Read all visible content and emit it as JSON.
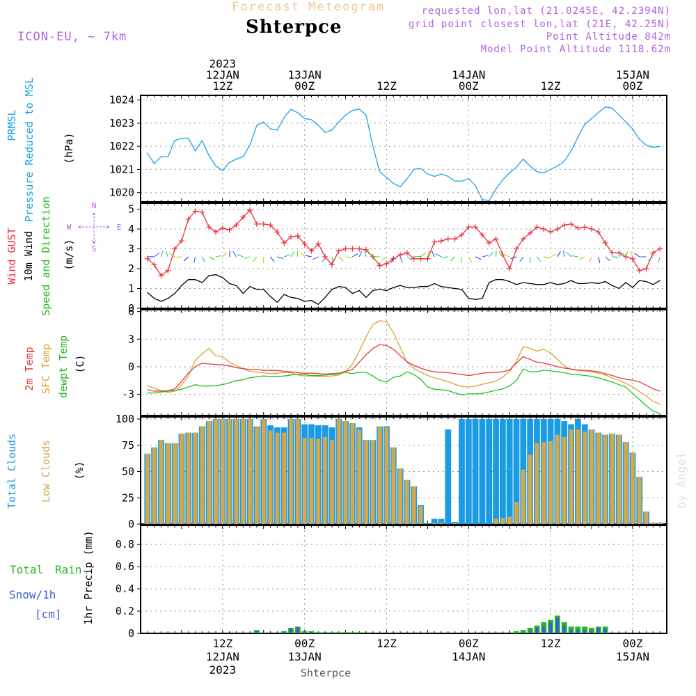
{
  "header": {
    "forecast_title": "Forecast Meteogram",
    "station": "Shterpce",
    "model": "ICON-EU, ~ 7km",
    "requested": "requested lon,lat (21.0245E, 42.2394N)",
    "grid_point": "grid point closest lon,lat (21E, 42.25N)",
    "point_altitude": "Point Altitude 842m",
    "model_altitude": "Model Point Altitude 1118.62m"
  },
  "watermark": "by Angel",
  "footer_station": "Shterpce",
  "top_time_labels": [
    {
      "lines": [
        "2023",
        "12JAN",
        "12Z"
      ],
      "t": 12
    },
    {
      "lines": [
        "13JAN",
        "00Z"
      ],
      "t": 24
    },
    {
      "lines": [
        "12Z"
      ],
      "t": 36
    },
    {
      "lines": [
        "14JAN",
        "00Z"
      ],
      "t": 48
    },
    {
      "lines": [
        "12Z"
      ],
      "t": 60
    },
    {
      "lines": [
        "15JAN",
        "00Z"
      ],
      "t": 72
    }
  ],
  "bottom_time_labels": [
    {
      "lines": [
        "12Z",
        "12JAN",
        "2023"
      ],
      "t": 12
    },
    {
      "lines": [
        "00Z",
        "13JAN"
      ],
      "t": 24
    },
    {
      "lines": [
        "12Z"
      ],
      "t": 36
    },
    {
      "lines": [
        "00Z",
        "14JAN"
      ],
      "t": 48
    },
    {
      "lines": [
        "12Z"
      ],
      "t": 60
    },
    {
      "lines": [
        "00Z",
        "15JAN"
      ],
      "t": 72
    }
  ],
  "labels": {
    "pressure": [
      "PRMSL",
      "Pressure Reduced to MSL",
      "(hPa)"
    ],
    "wind": [
      "Wind GUST",
      "10m Wind",
      "Speed and Direction",
      "(m/s)"
    ],
    "compass": [
      "N",
      "W",
      "E",
      "S"
    ],
    "temp": [
      "2m Temp",
      "SFC Temp",
      "dewpt Temp",
      "(C)"
    ],
    "clouds": [
      "Total Clouds",
      "Low Clouds",
      "(%)"
    ],
    "precip": [
      "Total",
      "Rain",
      "Snow/1h",
      "[cm]",
      "1hr Precip (mm)"
    ]
  },
  "colors": {
    "pressure": "#1ea0e6",
    "gust": "#e8303a",
    "wind": "#000000",
    "t2m": "#e83a3a",
    "sfc": "#e0a030",
    "dew": "#22c022",
    "total_clouds": "#1a9be6",
    "low_clouds": "#d4a84a",
    "rain": "#22b822",
    "snow": "#3b5be0",
    "purple": "#b060e0",
    "title_orange": "#f0c890"
  },
  "chart_data": [
    {
      "type": "line",
      "title": "PRMSL Pressure Reduced to MSL",
      "ylabel": "(hPa)",
      "ylim": [
        1019.6,
        1024.2
      ],
      "yticks": [
        1020,
        1021,
        1022,
        1023,
        1024
      ],
      "x_hours": [
        1,
        2,
        3,
        4,
        5,
        6,
        7,
        8,
        9,
        10,
        11,
        12,
        13,
        14,
        15,
        16,
        17,
        18,
        19,
        20,
        21,
        22,
        23,
        24,
        25,
        26,
        27,
        28,
        29,
        30,
        31,
        32,
        33,
        34,
        35,
        36,
        37,
        38,
        39,
        40,
        41,
        42,
        43,
        44,
        45,
        46,
        47,
        48,
        49,
        50,
        51,
        52,
        53,
        54,
        55,
        56,
        57,
        58,
        59,
        60,
        61,
        62,
        63,
        64,
        65,
        66,
        67,
        68,
        69,
        70,
        71,
        72,
        73,
        74,
        75,
        76
      ],
      "values": [
        1021.7,
        1021.25,
        1021.55,
        1021.55,
        1022.25,
        1022.35,
        1022.35,
        1021.8,
        1022.25,
        1021.6,
        1021.15,
        1020.95,
        1021.3,
        1021.45,
        1021.55,
        1022.05,
        1022.9,
        1023.05,
        1022.75,
        1022.7,
        1023.25,
        1023.6,
        1023.45,
        1023.2,
        1023.15,
        1022.9,
        1022.6,
        1022.7,
        1023.05,
        1023.35,
        1023.55,
        1023.6,
        1023.35,
        1022.0,
        1020.9,
        1020.65,
        1020.4,
        1020.25,
        1020.6,
        1021.0,
        1021.05,
        1020.8,
        1020.7,
        1020.8,
        1020.7,
        1020.5,
        1020.5,
        1020.6,
        1020.3,
        1019.7,
        1019.65,
        1020.15,
        1020.55,
        1020.85,
        1021.1,
        1021.45,
        1021.15,
        1020.9,
        1020.85,
        1021.0,
        1021.15,
        1021.35,
        1021.8,
        1022.4,
        1022.95,
        1023.2,
        1023.45,
        1023.7,
        1023.65,
        1023.35,
        1023.05,
        1022.75,
        1022.3,
        1022.05,
        1021.95,
        1022.0
      ]
    },
    {
      "type": "line",
      "title": "Wind GUST / 10m Wind Speed and Direction",
      "ylabel": "(m/s)",
      "ylim": [
        0,
        5.3
      ],
      "yticks": [
        0,
        1,
        2,
        3,
        4,
        5
      ],
      "x_hours": [
        1,
        2,
        3,
        4,
        5,
        6,
        7,
        8,
        9,
        10,
        11,
        12,
        13,
        14,
        15,
        16,
        17,
        18,
        19,
        20,
        21,
        22,
        23,
        24,
        25,
        26,
        27,
        28,
        29,
        30,
        31,
        32,
        33,
        34,
        35,
        36,
        37,
        38,
        39,
        40,
        41,
        42,
        43,
        44,
        45,
        46,
        47,
        48,
        49,
        50,
        51,
        52,
        53,
        54,
        55,
        56,
        57,
        58,
        59,
        60,
        61,
        62,
        63,
        64,
        65,
        66,
        67,
        68,
        69,
        70,
        71,
        72,
        73,
        74,
        75,
        76
      ],
      "series": [
        {
          "name": "Wind GUST",
          "values": [
            2.5,
            2.2,
            1.65,
            1.9,
            3.0,
            3.4,
            4.5,
            4.9,
            4.85,
            4.1,
            3.85,
            4.05,
            3.95,
            4.2,
            4.6,
            4.95,
            4.25,
            4.25,
            4.2,
            3.85,
            3.3,
            3.6,
            3.65,
            3.25,
            2.9,
            3.25,
            2.6,
            2.2,
            2.9,
            3.0,
            3.0,
            3.0,
            2.95,
            2.6,
            2.15,
            2.25,
            2.5,
            2.7,
            2.8,
            2.5,
            2.5,
            2.5,
            3.35,
            3.4,
            3.5,
            3.5,
            3.7,
            4.1,
            4.1,
            3.7,
            3.3,
            3.5,
            2.7,
            2.0,
            3.0,
            3.5,
            3.8,
            4.1,
            4.0,
            3.85,
            4.0,
            4.2,
            4.25,
            4.05,
            4.1,
            4.0,
            3.85,
            3.3,
            2.8,
            2.8,
            2.6,
            2.5,
            1.9,
            2.0,
            2.8,
            3.0
          ]
        },
        {
          "name": "10m Wind",
          "values": [
            0.8,
            0.5,
            0.35,
            0.5,
            0.75,
            1.15,
            1.45,
            1.45,
            1.3,
            1.65,
            1.7,
            1.55,
            1.25,
            1.15,
            0.75,
            1.1,
            0.95,
            0.95,
            0.6,
            0.3,
            0.7,
            0.55,
            0.5,
            0.35,
            0.4,
            0.2,
            0.55,
            0.95,
            1.1,
            1.05,
            0.75,
            0.9,
            0.55,
            0.9,
            0.95,
            0.9,
            1.05,
            1.15,
            1.05,
            1.05,
            1.1,
            1.1,
            1.25,
            1.1,
            1.05,
            1.0,
            0.95,
            0.5,
            0.45,
            0.5,
            1.3,
            1.45,
            1.45,
            1.35,
            1.2,
            1.3,
            1.25,
            1.2,
            1.2,
            1.3,
            1.2,
            1.25,
            1.4,
            1.25,
            1.25,
            1.3,
            1.25,
            1.35,
            1.15,
            1.0,
            1.3,
            1.05,
            1.4,
            1.35,
            1.2,
            1.4
          ]
        }
      ]
    },
    {
      "type": "line",
      "title": "2m Temp / SFC Temp / dewpt Temp",
      "ylabel": "(C)",
      "ylim": [
        -5.3,
        6.2
      ],
      "yticks": [
        -3,
        0,
        3,
        6
      ],
      "x_hours": [
        1,
        2,
        3,
        4,
        5,
        6,
        7,
        8,
        9,
        10,
        11,
        12,
        13,
        14,
        15,
        16,
        17,
        18,
        19,
        20,
        21,
        22,
        23,
        24,
        25,
        26,
        27,
        28,
        29,
        30,
        31,
        32,
        33,
        34,
        35,
        36,
        37,
        38,
        39,
        40,
        41,
        42,
        43,
        44,
        45,
        46,
        47,
        48,
        49,
        50,
        51,
        52,
        53,
        54,
        55,
        56,
        57,
        58,
        59,
        60,
        61,
        62,
        63,
        64,
        65,
        66,
        67,
        68,
        69,
        70,
        71,
        72,
        73,
        74,
        75,
        76
      ],
      "series": [
        {
          "name": "2m Temp",
          "values": [
            -2.5,
            -2.65,
            -2.65,
            -2.6,
            -2.4,
            -1.6,
            -0.7,
            0.0,
            0.4,
            0.3,
            0.25,
            0.2,
            0.1,
            -0.1,
            -0.2,
            -0.3,
            -0.3,
            -0.4,
            -0.4,
            -0.4,
            -0.5,
            -0.55,
            -0.65,
            -0.7,
            -0.7,
            -0.75,
            -0.8,
            -0.75,
            -0.7,
            -0.5,
            -0.3,
            0.5,
            1.3,
            2.0,
            2.4,
            2.3,
            1.9,
            1.2,
            0.55,
            0.15,
            -0.15,
            -0.4,
            -0.55,
            -0.6,
            -0.65,
            -0.75,
            -0.85,
            -0.95,
            -0.85,
            -0.7,
            -0.65,
            -0.6,
            -0.55,
            -0.35,
            0.4,
            1.1,
            0.8,
            0.5,
            0.4,
            0.2,
            0.0,
            -0.15,
            -0.25,
            -0.35,
            -0.4,
            -0.45,
            -0.55,
            -0.75,
            -0.95,
            -1.2,
            -1.35,
            -1.45,
            -1.65,
            -2.0,
            -2.4,
            -2.65
          ]
        },
        {
          "name": "SFC Temp",
          "values": [
            -2.05,
            -2.35,
            -2.6,
            -2.8,
            -2.65,
            -2.0,
            -1.0,
            0.7,
            1.4,
            2.0,
            1.2,
            1.1,
            0.5,
            0.1,
            -0.2,
            -0.5,
            -0.6,
            -0.65,
            -0.75,
            -0.7,
            -0.6,
            -0.65,
            -0.9,
            -1.0,
            -1.0,
            -1.05,
            -1.05,
            -1.0,
            -0.9,
            -0.5,
            0.3,
            1.7,
            3.3,
            4.6,
            5.0,
            4.9,
            3.7,
            2.1,
            0.5,
            -0.2,
            -0.6,
            -0.95,
            -1.2,
            -1.4,
            -1.6,
            -1.9,
            -2.15,
            -2.2,
            -2.1,
            -1.9,
            -1.75,
            -1.55,
            -1.15,
            -0.5,
            0.6,
            2.2,
            2.0,
            1.7,
            1.9,
            1.5,
            0.8,
            0.1,
            -0.3,
            -0.4,
            -0.45,
            -0.55,
            -0.7,
            -0.9,
            -1.2,
            -1.5,
            -1.8,
            -2.2,
            -2.7,
            -3.2,
            -3.75,
            -4.1
          ]
        },
        {
          "name": "dewpt Temp",
          "values": [
            -2.85,
            -2.85,
            -2.75,
            -2.65,
            -2.6,
            -2.45,
            -2.2,
            -1.95,
            -2.1,
            -2.1,
            -2.05,
            -1.95,
            -1.75,
            -1.5,
            -1.4,
            -1.2,
            -1.1,
            -1.0,
            -1.05,
            -1.05,
            -1.0,
            -0.9,
            -0.8,
            -0.85,
            -0.95,
            -0.95,
            -0.9,
            -0.85,
            -0.75,
            -0.6,
            -0.75,
            -0.6,
            -0.6,
            -1.0,
            -1.5,
            -1.65,
            -1.15,
            -1.0,
            -0.55,
            -0.85,
            -1.35,
            -2.2,
            -2.45,
            -2.5,
            -2.6,
            -2.85,
            -3.05,
            -2.95,
            -2.95,
            -2.9,
            -2.75,
            -2.55,
            -2.4,
            -2.1,
            -1.5,
            -0.25,
            -0.55,
            -0.55,
            -0.35,
            -0.45,
            -0.55,
            -0.65,
            -0.8,
            -0.85,
            -0.95,
            -1.05,
            -1.2,
            -1.45,
            -1.65,
            -1.95,
            -2.2,
            -2.9,
            -3.55,
            -4.25,
            -4.8,
            -5.1
          ]
        }
      ]
    },
    {
      "type": "bar",
      "title": "Total Clouds / Low Clouds",
      "ylabel": "(%)",
      "ylim": [
        0,
        102
      ],
      "yticks": [
        0,
        25,
        50,
        75,
        100
      ],
      "x_hours": [
        1,
        2,
        3,
        4,
        5,
        6,
        7,
        8,
        9,
        10,
        11,
        12,
        13,
        14,
        15,
        16,
        17,
        18,
        19,
        20,
        21,
        22,
        23,
        24,
        25,
        26,
        27,
        28,
        29,
        30,
        31,
        32,
        33,
        34,
        35,
        36,
        37,
        38,
        39,
        40,
        41,
        42,
        43,
        44,
        45,
        46,
        47,
        48,
        49,
        50,
        51,
        52,
        53,
        54,
        55,
        56,
        57,
        58,
        59,
        60,
        61,
        62,
        63,
        64,
        65,
        66,
        67,
        68,
        69,
        70,
        71,
        72,
        73,
        74,
        75,
        76
      ],
      "series": [
        {
          "name": "Total Clouds",
          "values": [
            67,
            73,
            80,
            77,
            77,
            86,
            87,
            87,
            93,
            98,
            100,
            100,
            100,
            100,
            100,
            100,
            93,
            100,
            94,
            92,
            92,
            100,
            100,
            95,
            95,
            94,
            94,
            92,
            100,
            98,
            96,
            92,
            80,
            80,
            93,
            93,
            73,
            53,
            42,
            36,
            18,
            1,
            5,
            5,
            90,
            2,
            100,
            100,
            100,
            100,
            100,
            100,
            100,
            100,
            100,
            100,
            100,
            100,
            100,
            100,
            100,
            98,
            95,
            100,
            95,
            90,
            87,
            85,
            86,
            85,
            78,
            68,
            45,
            12,
            1,
            1
          ]
        },
        {
          "name": "Low Clouds",
          "values": [
            67,
            73,
            80,
            77,
            77,
            86,
            87,
            87,
            93,
            98,
            100,
            100,
            100,
            100,
            100,
            100,
            93,
            100,
            89,
            87,
            87,
            100,
            100,
            82,
            82,
            81,
            83,
            80,
            100,
            98,
            96,
            90,
            80,
            80,
            93,
            92,
            73,
            53,
            42,
            36,
            17,
            0,
            1,
            1,
            0,
            1,
            0,
            0,
            0,
            0,
            0,
            5,
            6,
            7,
            21,
            52,
            66,
            77,
            78,
            79,
            85,
            83,
            90,
            90,
            88,
            90,
            87,
            85,
            86,
            85,
            78,
            68,
            45,
            12,
            1,
            1
          ]
        }
      ]
    },
    {
      "type": "bar",
      "title": "1hr Precip (mm)",
      "ylabel": "1hr Precip (mm)",
      "ylim": [
        0,
        0.97
      ],
      "yticks": [
        0,
        0.2,
        0.4,
        0.6,
        0.8
      ],
      "x_hours": [
        17,
        21,
        22,
        23,
        24,
        25,
        26,
        27,
        28,
        29,
        30,
        31,
        32,
        55,
        56,
        57,
        58,
        59,
        60,
        61,
        62,
        63,
        64,
        65,
        66,
        67,
        68
      ],
      "series": [
        {
          "name": "Total Rain",
          "values": [
            0.03,
            0.02,
            0.05,
            0.06,
            0.02,
            0.02,
            0.01,
            0.01,
            0.01,
            0.01,
            0.01,
            0.01,
            0.01,
            0.02,
            0.03,
            0.05,
            0.07,
            0.1,
            0.12,
            0.16,
            0.1,
            0.06,
            0.06,
            0.06,
            0.05,
            0.06,
            0.06
          ]
        },
        {
          "name": "Snow/1h",
          "values": [
            0.02,
            0.01,
            0.04,
            0.06,
            0.01,
            0.01,
            0,
            0.01,
            0,
            0,
            0,
            0,
            0,
            0,
            0.01,
            0.02,
            0.05,
            0.06,
            0.1,
            0.14,
            0.07,
            0.03,
            0.03,
            0.03,
            0.02,
            0.05,
            0.04
          ]
        }
      ]
    }
  ]
}
